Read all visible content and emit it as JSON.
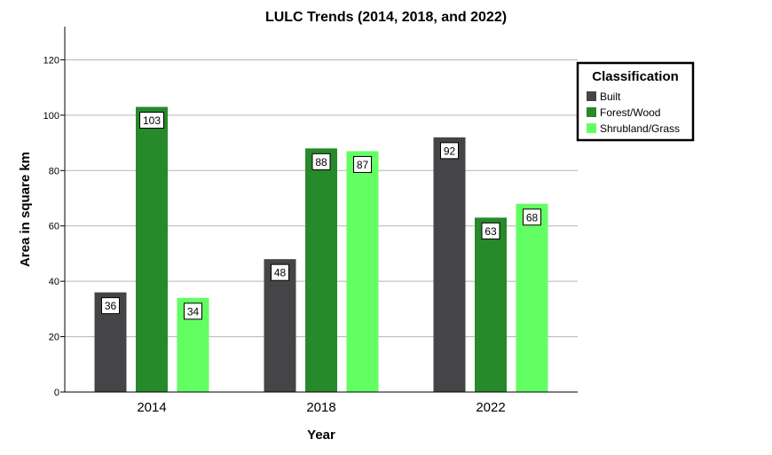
{
  "chart_data": {
    "type": "bar",
    "title": "LULC Trends (2014, 2018, and 2022)",
    "xlabel": "Year",
    "ylabel": "Area in square km",
    "categories": [
      "2014",
      "2018",
      "2022"
    ],
    "ylim": [
      0,
      132
    ],
    "yticks": [
      0,
      20,
      40,
      60,
      80,
      100,
      120
    ],
    "grid": true,
    "legend_title": "Classification",
    "legend_position": "right",
    "series": [
      {
        "name": "Built",
        "color": "#454547",
        "values": [
          36,
          48,
          92
        ]
      },
      {
        "name": "Forest/Wood",
        "color": "#26892a",
        "values": [
          103,
          88,
          63
        ]
      },
      {
        "name": "Shrubland/Grass",
        "color": "#62fe62",
        "values": [
          34,
          87,
          68
        ]
      }
    ]
  }
}
